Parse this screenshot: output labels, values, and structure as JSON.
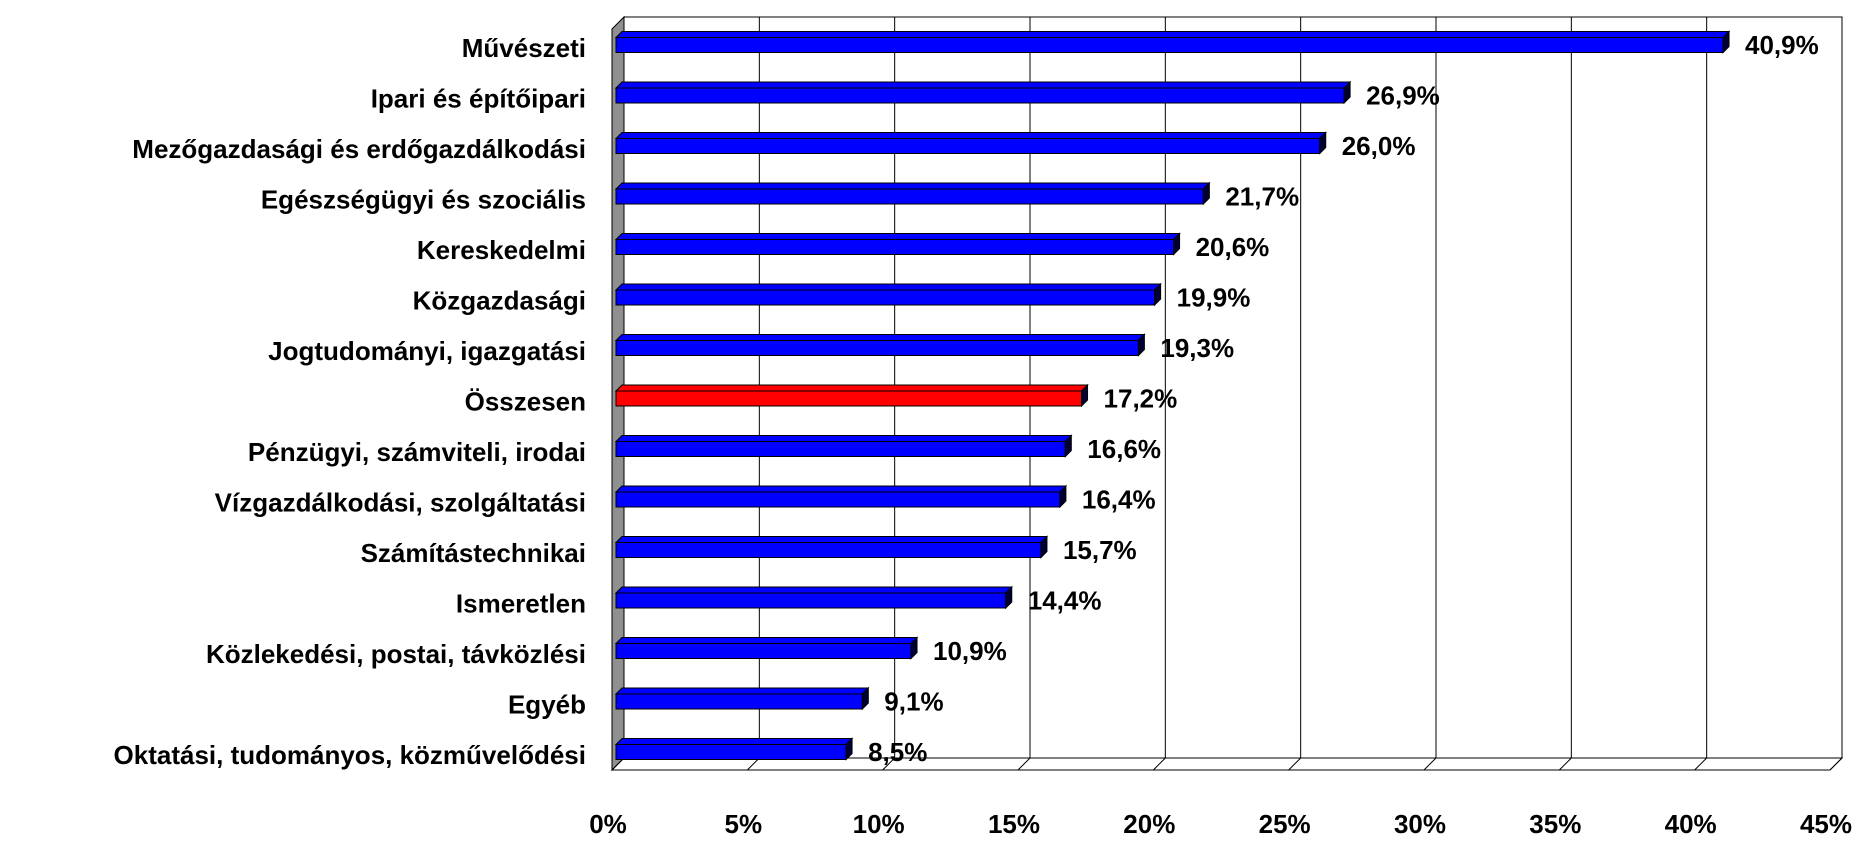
{
  "chart_data": {
    "type": "bar",
    "orientation": "horizontal",
    "categories": [
      "Művészeti",
      "Ipari és építőipari",
      "Mezőgazdasági és erdőgazdálkodási",
      "Egészségügyi és szociális",
      "Kereskedelmi",
      "Közgazdasági",
      "Jogtudományi, igazgatási",
      "Összesen",
      "Pénzügyi, számviteli, irodai",
      "Vízgazdálkodási, szolgáltatási",
      "Számítástechnikai",
      "Ismeretlen",
      "Közlekedési, postai, távközlési",
      "Egyéb",
      "Oktatási, tudományos, közművelődési"
    ],
    "values": [
      40.9,
      26.9,
      26.0,
      21.7,
      20.6,
      19.9,
      19.3,
      17.2,
      16.6,
      16.4,
      15.7,
      14.4,
      10.9,
      9.1,
      8.5
    ],
    "value_labels": [
      "40,9%",
      "26,9%",
      "26,0%",
      "21,7%",
      "20,6%",
      "19,9%",
      "19,3%",
      "17,2%",
      "16,6%",
      "16,4%",
      "15,7%",
      "14,4%",
      "10,9%",
      "9,1%",
      "8,5%"
    ],
    "colors": [
      "#0000ff",
      "#0000ff",
      "#0000ff",
      "#0000ff",
      "#0000ff",
      "#0000ff",
      "#0000ff",
      "#ff0000",
      "#0000ff",
      "#0000ff",
      "#0000ff",
      "#0000ff",
      "#0000ff",
      "#0000ff",
      "#0000ff"
    ],
    "xlim": [
      0,
      45
    ],
    "xticks": [
      {
        "value": 0,
        "label": "0%"
      },
      {
        "value": 5,
        "label": "5%"
      },
      {
        "value": 10,
        "label": "10%"
      },
      {
        "value": 15,
        "label": "15%"
      },
      {
        "value": 20,
        "label": "20%"
      },
      {
        "value": 25,
        "label": "25%"
      },
      {
        "value": 30,
        "label": "30%"
      },
      {
        "value": 35,
        "label": "35%"
      },
      {
        "value": 40,
        "label": "40%"
      },
      {
        "value": 45,
        "label": "45%"
      }
    ],
    "grid": true
  }
}
